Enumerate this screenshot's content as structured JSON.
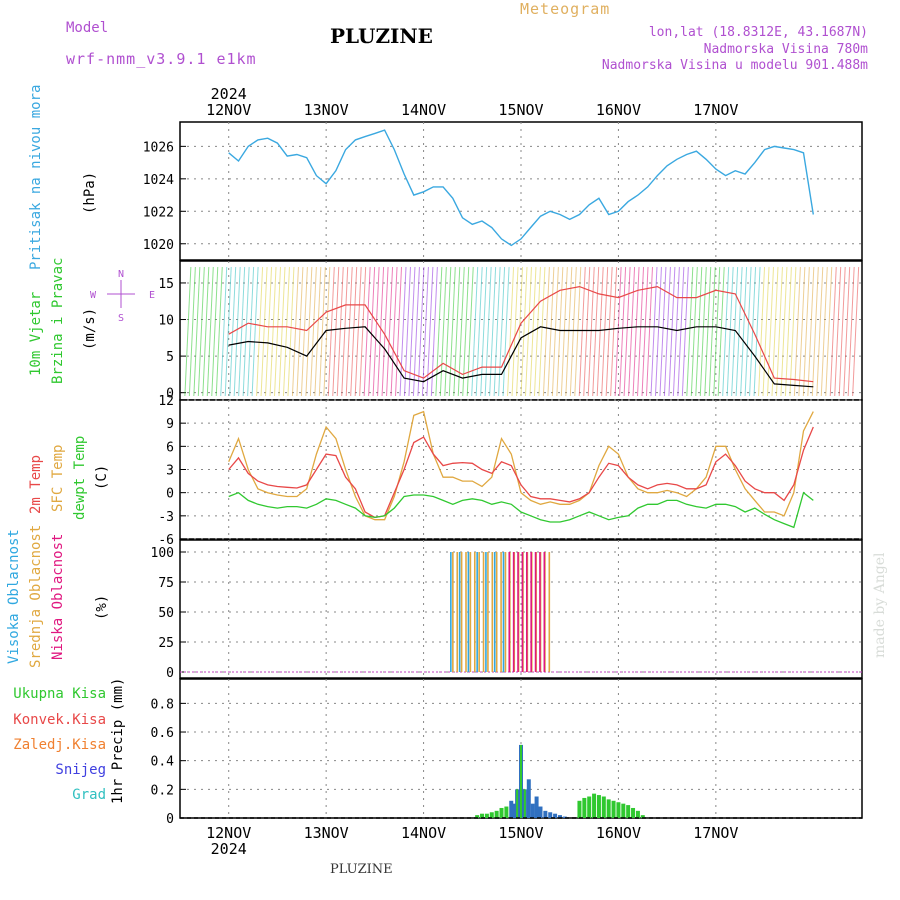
{
  "header": {
    "model_label": "Model",
    "model_name": "wrf-nmm_v3.9.1 e1km",
    "title": "PLUZINE",
    "meteogram_label": "Meteogram",
    "coords": "lon,lat (18.8312E, 43.1687N)",
    "altitude": "Nadmorska Visina 780m",
    "model_altitude": "Nadmorska Visina u modelu 901.488m"
  },
  "footer": {
    "station": "PLUZINE"
  },
  "credit": "made by Angel",
  "colors": {
    "pressure": "#3aa8e0",
    "temp": "#e84848",
    "sfc_temp": "#e0a840",
    "dewpt": "#30c830",
    "wind_speed": "#000000",
    "gust": "#e84848",
    "vis_cloud": "#30a8e0",
    "mid_cloud": "#e0a840",
    "low_cloud": "#e01880",
    "total_precip": "#30c830",
    "conv_precip": "#e84848",
    "frozen_precip": "#f08030",
    "snow": "#4040e0",
    "hail": "#30c0c0",
    "axis_label": "#b050d0"
  },
  "chart_data": [
    {
      "type": "line",
      "panel": "pressure",
      "ylabel": "Pritisak na nivou mora",
      "unit": "(hPa)",
      "ylim": [
        1019,
        1027.5
      ],
      "yticks": [
        1020,
        1022,
        1024,
        1026
      ],
      "x_days": [
        0.0,
        0.1,
        0.2,
        0.3,
        0.4,
        0.5,
        0.6,
        0.7,
        0.8,
        0.9,
        1.0,
        1.1,
        1.2,
        1.3,
        1.4,
        1.5,
        1.6,
        1.7,
        1.8,
        1.9,
        2.0,
        2.1,
        2.2,
        2.3,
        2.4,
        2.5,
        2.6,
        2.7,
        2.8,
        2.9,
        3.0,
        3.1,
        3.2,
        3.3,
        3.4,
        3.5,
        3.6,
        3.7,
        3.8,
        3.9,
        4.0,
        4.1,
        4.2,
        4.3,
        4.4,
        4.5,
        4.6,
        4.7,
        4.8,
        4.9,
        5.0,
        5.1,
        5.2,
        5.3,
        5.4,
        5.5,
        5.6,
        5.7,
        5.8,
        5.9,
        6.0
      ],
      "values": [
        1025.6,
        1025.1,
        1026.0,
        1026.4,
        1026.5,
        1026.2,
        1025.4,
        1025.5,
        1025.3,
        1024.2,
        1023.7,
        1024.5,
        1025.8,
        1026.4,
        1026.6,
        1026.8,
        1027.0,
        1025.8,
        1024.3,
        1023.0,
        1023.2,
        1023.5,
        1023.5,
        1022.8,
        1021.6,
        1021.2,
        1021.4,
        1021.0,
        1020.3,
        1019.9,
        1020.3,
        1021.0,
        1021.7,
        1022.0,
        1021.8,
        1021.5,
        1021.8,
        1022.4,
        1022.8,
        1021.8,
        1022.0,
        1022.6,
        1023.0,
        1023.5,
        1024.2,
        1024.8,
        1025.2,
        1025.5,
        1025.7,
        1025.2,
        1024.6,
        1024.2,
        1024.5,
        1024.3,
        1025.0,
        1025.8,
        1026.0,
        1025.9,
        1025.8,
        1025.6,
        1021.8
      ]
    },
    {
      "type": "line",
      "panel": "wind",
      "ylabel": "10m Vjetar",
      "ylabel2": "Brzina i Pravac",
      "unit": "(m/s)",
      "compass": [
        "N",
        "S",
        "W",
        "E"
      ],
      "ylim": [
        -1,
        18
      ],
      "yticks": [
        0,
        5,
        10,
        15
      ],
      "x_days": [
        0.0,
        0.2,
        0.4,
        0.6,
        0.8,
        1.0,
        1.2,
        1.4,
        1.6,
        1.8,
        2.0,
        2.2,
        2.4,
        2.6,
        2.8,
        3.0,
        3.2,
        3.4,
        3.6,
        3.8,
        4.0,
        4.2,
        4.4,
        4.6,
        4.8,
        5.0,
        5.2,
        5.4,
        5.6,
        5.8,
        6.0
      ],
      "series": [
        {
          "key": "speed",
          "values": [
            6.5,
            7.0,
            6.8,
            6.2,
            5.0,
            8.5,
            8.8,
            9.0,
            6.0,
            2.0,
            1.5,
            3.0,
            2.0,
            2.5,
            2.5,
            7.5,
            9.0,
            8.5,
            8.5,
            8.5,
            8.8,
            9.0,
            9.0,
            8.5,
            9.0,
            9.0,
            8.5,
            5.0,
            1.2,
            1.0,
            0.8
          ]
        },
        {
          "key": "gust",
          "values": [
            8.0,
            9.5,
            9.0,
            9.0,
            8.5,
            11.0,
            12.0,
            12.0,
            8.0,
            3.0,
            2.0,
            4.0,
            2.5,
            3.5,
            3.5,
            9.5,
            12.5,
            14.0,
            14.5,
            13.5,
            13.0,
            14.0,
            14.5,
            13.0,
            13.0,
            14.0,
            13.5,
            8.0,
            2.0,
            1.8,
            1.5
          ]
        }
      ]
    },
    {
      "type": "line",
      "panel": "temperature",
      "ylabel_lines": [
        "2m Temp",
        "SFC Temp",
        "dewpt Temp"
      ],
      "unit": "(C)",
      "ylim": [
        -6,
        12
      ],
      "yticks": [
        -6,
        -3,
        0,
        3,
        6,
        9,
        12
      ],
      "x_days": [
        0.0,
        0.1,
        0.2,
        0.3,
        0.4,
        0.5,
        0.6,
        0.7,
        0.8,
        0.9,
        1.0,
        1.1,
        1.2,
        1.3,
        1.4,
        1.5,
        1.6,
        1.7,
        1.8,
        1.9,
        2.0,
        2.1,
        2.2,
        2.3,
        2.4,
        2.5,
        2.6,
        2.7,
        2.8,
        2.9,
        3.0,
        3.1,
        3.2,
        3.3,
        3.4,
        3.5,
        3.6,
        3.7,
        3.8,
        3.9,
        4.0,
        4.1,
        4.2,
        4.3,
        4.4,
        4.5,
        4.6,
        4.7,
        4.8,
        4.9,
        5.0,
        5.1,
        5.2,
        5.3,
        5.4,
        5.5,
        5.6,
        5.7,
        5.8,
        5.9,
        6.0
      ],
      "series": [
        {
          "key": "temp2m",
          "values": [
            3.0,
            4.5,
            2.5,
            1.5,
            1.0,
            0.8,
            0.7,
            0.6,
            1.0,
            3.0,
            5.0,
            4.8,
            2.0,
            0.5,
            -2.5,
            -3.2,
            -3.0,
            0.0,
            3.0,
            6.5,
            7.2,
            5.0,
            3.5,
            3.8,
            3.9,
            3.8,
            3.0,
            2.5,
            4.0,
            3.5,
            1.0,
            -0.5,
            -0.8,
            -0.8,
            -1.0,
            -1.2,
            -0.8,
            0.0,
            2.0,
            3.8,
            3.5,
            2.0,
            1.0,
            0.5,
            1.0,
            1.2,
            1.0,
            0.5,
            0.5,
            1.0,
            4.0,
            5.0,
            3.5,
            1.5,
            0.5,
            0.0,
            0.0,
            -1.0,
            1.0,
            5.5,
            8.5
          ]
        },
        {
          "key": "sfc_temp",
          "values": [
            4.0,
            7.0,
            3.0,
            0.5,
            0.0,
            -0.3,
            -0.5,
            -0.5,
            0.5,
            5.0,
            8.5,
            7.0,
            3.0,
            -0.5,
            -3.0,
            -3.5,
            -3.5,
            -0.5,
            4.0,
            10.0,
            10.5,
            5.0,
            2.0,
            2.0,
            1.5,
            1.5,
            0.8,
            2.0,
            7.0,
            5.0,
            0.0,
            -1.0,
            -1.5,
            -1.2,
            -1.5,
            -1.5,
            -1.0,
            0.0,
            3.5,
            6.0,
            5.0,
            2.0,
            0.5,
            0.0,
            0.0,
            0.3,
            0.0,
            -0.5,
            0.5,
            2.0,
            6.0,
            6.0,
            3.0,
            0.5,
            -1.0,
            -2.5,
            -2.5,
            -3.0,
            0.0,
            8.0,
            10.5
          ]
        },
        {
          "key": "dewpt",
          "values": [
            -0.5,
            0.0,
            -1.0,
            -1.5,
            -1.8,
            -2.0,
            -1.8,
            -1.8,
            -2.0,
            -1.5,
            -0.8,
            -1.0,
            -1.5,
            -2.0,
            -3.0,
            -3.2,
            -3.0,
            -2.0,
            -0.5,
            -0.3,
            -0.3,
            -0.5,
            -1.0,
            -1.5,
            -1.0,
            -0.8,
            -1.0,
            -1.5,
            -1.2,
            -1.5,
            -2.5,
            -3.0,
            -3.5,
            -3.8,
            -3.8,
            -3.5,
            -3.0,
            -2.5,
            -3.0,
            -3.5,
            -3.2,
            -3.0,
            -2.0,
            -1.5,
            -1.5,
            -1.0,
            -1.0,
            -1.5,
            -1.8,
            -2.0,
            -1.5,
            -1.5,
            -1.8,
            -2.5,
            -2.0,
            -2.8,
            -3.5,
            -4.0,
            -4.5,
            0.0,
            -1.0
          ]
        }
      ]
    },
    {
      "type": "bar",
      "panel": "clouds",
      "ylabel_lines": [
        "Visoka Oblacnost",
        "Srednja Oblacnost",
        "Niska Oblacnost"
      ],
      "unit": "(%)",
      "ylim": [
        -5,
        110
      ],
      "yticks": [
        0,
        25,
        50,
        75,
        100
      ],
      "bands": [
        {
          "key": "mid",
          "from": 2.28,
          "to": 3.3,
          "value": 100
        },
        {
          "key": "high",
          "from": 2.28,
          "to": 2.9,
          "value": 100
        },
        {
          "key": "low",
          "from": 2.9,
          "to": 3.3,
          "value": 100
        }
      ]
    },
    {
      "type": "bar",
      "panel": "precip",
      "legend": [
        "Ukupna Kisa",
        "Konvek.Kisa",
        "Zaledj.Kisa",
        "Snijeg",
        "Grad"
      ],
      "ylabel": "1hr Precip (mm)",
      "ylim": [
        0,
        0.97
      ],
      "yticks": [
        0,
        0.2,
        0.4,
        0.6,
        0.8
      ],
      "x_days": [
        2.55,
        2.6,
        2.65,
        2.7,
        2.75,
        2.8,
        2.85,
        2.9,
        2.93,
        2.96,
        3.0,
        3.04,
        3.08,
        3.12,
        3.16,
        3.2,
        3.25,
        3.3,
        3.35,
        3.4,
        3.45,
        3.6,
        3.65,
        3.7,
        3.75,
        3.8,
        3.85,
        3.9,
        3.95,
        4.0,
        4.05,
        4.1,
        4.15,
        4.2,
        4.25
      ],
      "values": [
        0.02,
        0.03,
        0.03,
        0.04,
        0.05,
        0.07,
        0.08,
        0.12,
        0.1,
        0.2,
        0.51,
        0.2,
        0.27,
        0.1,
        0.15,
        0.08,
        0.05,
        0.04,
        0.03,
        0.02,
        0.01,
        0.12,
        0.14,
        0.15,
        0.17,
        0.16,
        0.15,
        0.13,
        0.12,
        0.11,
        0.1,
        0.09,
        0.07,
        0.05,
        0.02
      ]
    }
  ],
  "x_axis": {
    "range_days": [
      -0.5,
      6.5
    ],
    "day_labels": [
      "12NOV",
      "13NOV",
      "14NOV",
      "15NOV",
      "16NOV",
      "17NOV"
    ],
    "year": "2024"
  }
}
